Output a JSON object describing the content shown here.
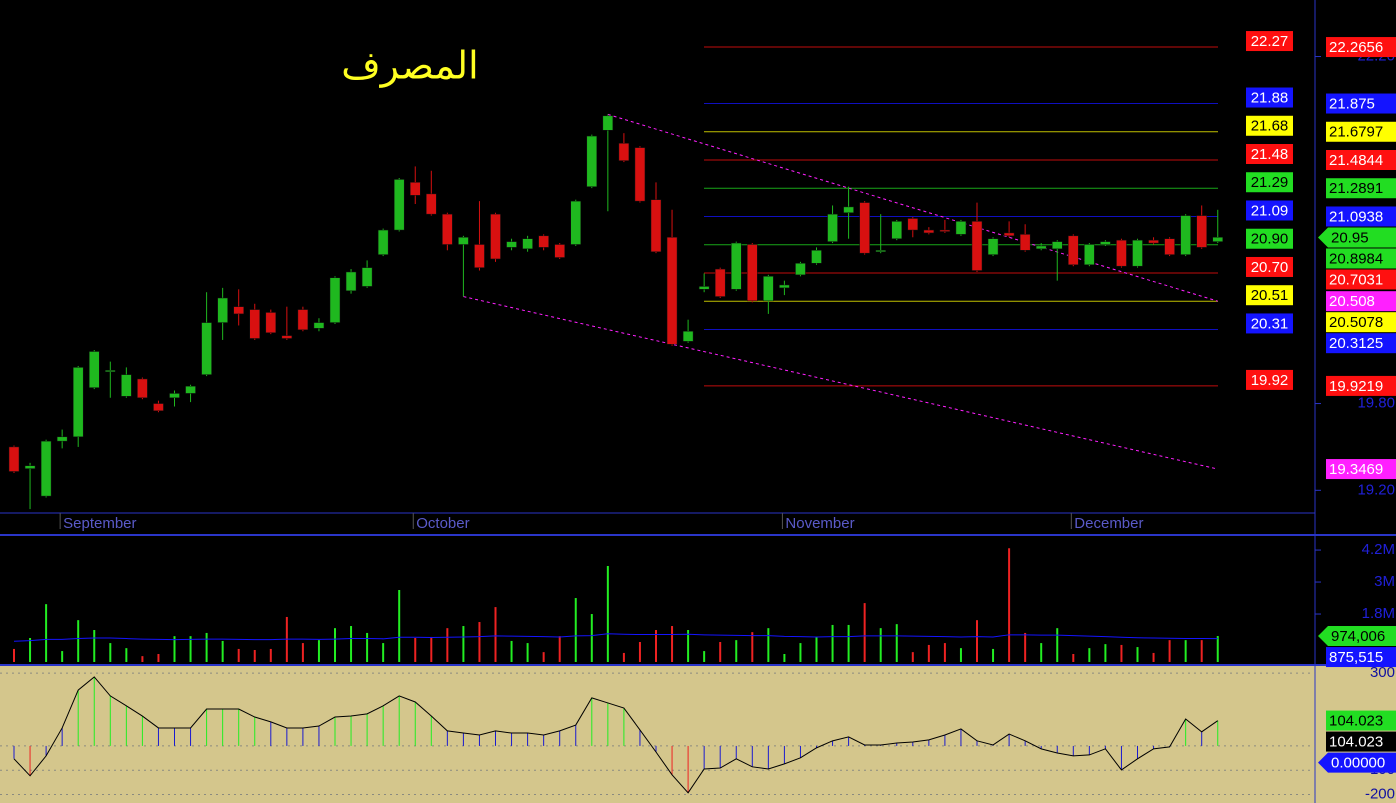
{
  "chart_data": [
    {
      "type": "candlestick",
      "title": "المصرف",
      "categories": [
        null,
        null,
        null,
        "September",
        null,
        null,
        null,
        null,
        null,
        null,
        null,
        null,
        null,
        null,
        null,
        null,
        null,
        null,
        null,
        null,
        null,
        null,
        null,
        null,
        null,
        "October",
        null,
        null,
        null,
        null,
        null,
        null,
        null,
        null,
        null,
        null,
        null,
        null,
        null,
        null,
        null,
        null,
        null,
        null,
        null,
        null,
        null,
        null,
        "November",
        null,
        null,
        null,
        null,
        null,
        null,
        null,
        null,
        null,
        null,
        null,
        null,
        null,
        null,
        null,
        null,
        null,
        "December",
        null,
        null,
        null,
        null,
        null,
        null,
        null,
        null,
        null
      ],
      "open": [
        19.5,
        19.35,
        19.16,
        19.54,
        19.57,
        19.91,
        20.02,
        19.85,
        19.97,
        19.8,
        19.84,
        19.87,
        20.0,
        20.36,
        20.47,
        20.45,
        20.43,
        20.27,
        20.45,
        20.32,
        20.36,
        20.58,
        20.61,
        20.83,
        21.0,
        21.33,
        21.25,
        21.11,
        20.9,
        20.9,
        21.11,
        20.88,
        20.87,
        20.96,
        20.9,
        20.9,
        21.3,
        21.69,
        21.6,
        21.57,
        21.21,
        20.95,
        20.23,
        20.59,
        20.73,
        20.59,
        20.9,
        20.51,
        20.6,
        20.69,
        20.77,
        20.92,
        21.12,
        21.19,
        20.85,
        20.94,
        21.08,
        21.0,
        21.0,
        20.97,
        21.06,
        20.83,
        20.98,
        20.97,
        20.87,
        20.87,
        20.96,
        20.76,
        20.9,
        20.93,
        20.75,
        20.93,
        20.94,
        20.83,
        21.1,
        20.92
      ],
      "high": [
        19.51,
        19.39,
        19.55,
        19.62,
        20.06,
        20.17,
        20.09,
        20.05,
        19.98,
        19.82,
        19.89,
        19.93,
        20.57,
        20.6,
        20.59,
        20.49,
        20.45,
        20.47,
        20.47,
        20.39,
        20.68,
        20.73,
        20.79,
        21.01,
        21.36,
        21.44,
        21.41,
        21.12,
        20.96,
        21.2,
        21.12,
        20.94,
        20.96,
        20.97,
        20.91,
        21.21,
        21.66,
        21.8,
        21.67,
        21.58,
        21.33,
        21.14,
        20.38,
        20.7,
        20.74,
        20.92,
        20.91,
        20.69,
        20.65,
        20.78,
        20.88,
        21.17,
        21.3,
        21.2,
        21.11,
        21.07,
        21.09,
        21.02,
        21.07,
        21.07,
        21.19,
        20.95,
        21.06,
        21.04,
        20.91,
        20.93,
        20.97,
        20.91,
        20.93,
        20.94,
        20.94,
        20.95,
        20.95,
        21.11,
        21.17,
        21.14
      ],
      "low": [
        19.32,
        19.07,
        19.15,
        19.49,
        19.5,
        19.9,
        19.84,
        19.84,
        19.83,
        19.74,
        19.78,
        19.81,
        19.99,
        20.24,
        20.34,
        20.24,
        20.28,
        20.24,
        20.3,
        20.3,
        20.35,
        20.56,
        20.6,
        20.82,
        20.99,
        21.18,
        21.1,
        20.86,
        20.54,
        20.72,
        20.78,
        20.86,
        20.85,
        20.86,
        20.8,
        20.89,
        21.29,
        21.13,
        21.47,
        21.19,
        20.84,
        20.2,
        20.22,
        20.57,
        20.53,
        20.58,
        20.5,
        20.42,
        20.55,
        20.68,
        20.76,
        20.91,
        20.94,
        20.83,
        20.84,
        20.93,
        20.95,
        20.97,
        20.98,
        20.96,
        20.71,
        20.82,
        20.95,
        20.85,
        20.86,
        20.65,
        20.75,
        20.75,
        20.89,
        20.74,
        20.74,
        20.9,
        20.82,
        20.82,
        20.87,
        20.91
      ],
      "close": [
        19.33,
        19.37,
        19.54,
        19.57,
        20.05,
        20.16,
        20.03,
        20.0,
        19.84,
        19.75,
        19.87,
        19.92,
        20.36,
        20.53,
        20.42,
        20.25,
        20.29,
        20.25,
        20.31,
        20.36,
        20.67,
        20.71,
        20.74,
        21.0,
        21.35,
        21.24,
        21.11,
        20.9,
        20.95,
        20.74,
        20.8,
        20.92,
        20.94,
        20.88,
        20.81,
        21.2,
        21.65,
        21.79,
        21.48,
        21.2,
        20.85,
        20.21,
        20.3,
        20.61,
        20.54,
        20.91,
        20.51,
        20.68,
        20.62,
        20.77,
        20.86,
        21.11,
        21.16,
        20.84,
        20.86,
        21.06,
        21.0,
        20.98,
        20.99,
        21.06,
        20.72,
        20.94,
        20.96,
        20.86,
        20.89,
        20.92,
        20.76,
        20.9,
        20.92,
        20.75,
        20.93,
        20.91,
        20.83,
        21.1,
        20.88,
        20.95
      ],
      "up_color": "#1fb81f",
      "down_color": "#d81010",
      "last_color": "#22dd22",
      "ylim": [
        19.043,
        22.591
      ],
      "yticks": [
        {
          "value": 19.2,
          "label": "19.20"
        },
        {
          "value": 19.8,
          "label": "19.80"
        },
        {
          "value": 22.2,
          "label": "22.20"
        }
      ],
      "levels": [
        {
          "value": 22.2656,
          "label": "22.27",
          "color": "#ff1010"
        },
        {
          "value": 21.875,
          "label": "21.88",
          "color": "#1414ff"
        },
        {
          "value": 21.6797,
          "label": "21.68",
          "color": "#ffff00"
        },
        {
          "value": 21.4844,
          "label": "21.48",
          "color": "#ff1010"
        },
        {
          "value": 21.2891,
          "label": "21.29",
          "color": "#22dd22"
        },
        {
          "value": 21.0938,
          "label": "21.09",
          "color": "#1414ff"
        },
        {
          "value": 20.8984,
          "label": "20.90",
          "color": "#22dd22"
        },
        {
          "value": 20.7031,
          "label": "20.70",
          "color": "#ff1010"
        },
        {
          "value": 20.5078,
          "label": "20.51",
          "color": "#ffff00"
        },
        {
          "value": 20.3125,
          "label": "20.31",
          "color": "#1414ff"
        },
        {
          "value": 19.9219,
          "label": "19.92",
          "color": "#ff1010"
        }
      ],
      "trendlines": [
        {
          "x": [
            37,
            75
          ],
          "values": [
            21.8,
            20.508
          ],
          "color": "#ff20ff"
        },
        {
          "x": [
            28,
            75
          ],
          "values": [
            20.54,
            19.3469
          ],
          "color": "#ff20ff"
        }
      ]
    },
    {
      "type": "bar",
      "values": [
        490000,
        900000,
        2170000,
        410000,
        1570000,
        1200000,
        710000,
        520000,
        220000,
        300000,
        970000,
        970000,
        1090000,
        790000,
        490000,
        450000,
        490000,
        1690000,
        710000,
        820000,
        1270000,
        1350000,
        1090000,
        710000,
        2700000,
        900000,
        940000,
        1270000,
        1350000,
        1500000,
        2060000,
        790000,
        710000,
        370000,
        970000,
        2400000,
        1800000,
        3600000,
        340000,
        750000,
        1200000,
        1350000,
        1200000,
        410000,
        750000,
        820000,
        1120000,
        1270000,
        300000,
        710000,
        940000,
        1390000,
        1390000,
        2210000,
        1270000,
        1420000,
        370000,
        640000,
        710000,
        520000,
        1570000,
        490000,
        4270000,
        1090000,
        710000,
        1270000,
        300000,
        520000,
        670000,
        640000,
        560000,
        340000,
        820000,
        820000,
        820000,
        974006
      ],
      "last_label": "974,006",
      "last_color": "#22dd22",
      "average": [
        780000,
        800000,
        850000,
        850000,
        880000,
        900000,
        900000,
        880000,
        860000,
        850000,
        840000,
        850000,
        860000,
        860000,
        850000,
        840000,
        840000,
        860000,
        860000,
        850000,
        860000,
        880000,
        880000,
        870000,
        930000,
        930000,
        920000,
        930000,
        940000,
        950000,
        980000,
        970000,
        960000,
        950000,
        940000,
        980000,
        990000,
        1060000,
        1040000,
        1030000,
        1030000,
        1030000,
        1040000,
        1020000,
        1010000,
        1000000,
        990000,
        990000,
        960000,
        950000,
        940000,
        950000,
        950000,
        980000,
        980000,
        980000,
        970000,
        960000,
        950000,
        940000,
        950000,
        940000,
        1020000,
        1020000,
        1010000,
        1010000,
        990000,
        970000,
        950000,
        930000,
        910000,
        900000,
        890000,
        880000,
        880000,
        875515
      ],
      "average_label": "875,515",
      "average_color": "#1414ff",
      "ylim": [
        0,
        4690000
      ],
      "yticks": [
        {
          "value": 1800000,
          "label": "1.8M"
        },
        {
          "value": 3000000,
          "label": "3M"
        },
        {
          "value": 4200000,
          "label": "4.2M"
        }
      ]
    },
    {
      "type": "oscillator",
      "values": [
        -53,
        -123,
        -41,
        74,
        230,
        284,
        206,
        165,
        123,
        74,
        74,
        74,
        152,
        152,
        152,
        119,
        99,
        74,
        74,
        82,
        119,
        123,
        132,
        165,
        206,
        181,
        123,
        62,
        53,
        45,
        62,
        53,
        53,
        45,
        62,
        86,
        198,
        177,
        156,
        66,
        -25,
        -119,
        -193,
        -95,
        -91,
        -53,
        -86,
        -95,
        -74,
        -49,
        -8,
        21,
        37,
        4,
        4,
        12,
        16,
        25,
        45,
        70,
        21,
        4,
        49,
        21,
        -12,
        -29,
        -41,
        -37,
        -12,
        -99,
        -53,
        -12,
        -4,
        111,
        58,
        104.023
      ],
      "signal": 104.023,
      "last_color": "#22dd22",
      "signal_color": "#000000",
      "bands": [
        -100,
        100
      ],
      "colors": {
        "above": "#22ee22",
        "neutral": "#1a1ad0",
        "below": "#ee2222"
      },
      "zero_color": "#1414ff",
      "ylim": [
        -235,
        325
      ],
      "yticks": [
        -200,
        -100,
        {
          "value": 0,
          "label": "0.00000"
        },
        300
      ]
    }
  ]
}
